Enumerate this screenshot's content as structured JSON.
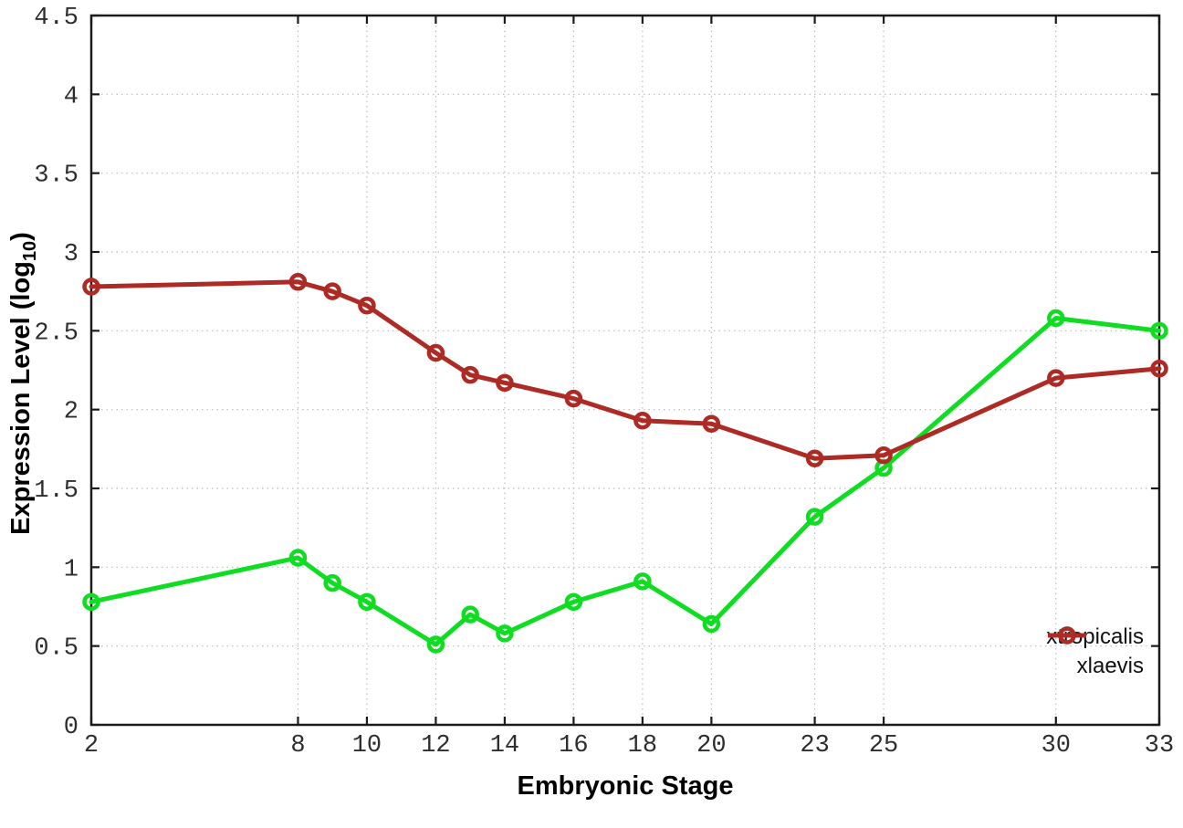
{
  "chart_data": {
    "type": "line",
    "title": "",
    "xlabel": "Embryonic Stage",
    "ylabel": "Expression Level (log10)",
    "ylabel_parts": {
      "main": "Expression Level (log",
      "sub": "10",
      "close": ")"
    },
    "xlim": [
      2,
      33
    ],
    "ylim": [
      0,
      4.5
    ],
    "grid": true,
    "legend_position": "inside-bottom-right",
    "x": [
      2,
      8,
      9,
      10,
      12,
      13,
      14,
      16,
      18,
      20,
      23,
      25,
      30,
      33
    ],
    "xticks": [
      2,
      8,
      10,
      12,
      14,
      16,
      18,
      20,
      23,
      25,
      30,
      33
    ],
    "xtick_labels": [
      "2",
      "8",
      "10",
      "12",
      "14",
      "16",
      "18",
      "20",
      "23",
      "25",
      "30",
      "33"
    ],
    "yticks": [
      0,
      0.5,
      1,
      1.5,
      2,
      2.5,
      3,
      3.5,
      4,
      4.5
    ],
    "ytick_labels": [
      "0",
      "0.5",
      "1",
      "1.5",
      "2",
      "2.5",
      "3",
      "3.5",
      "4",
      "4.5"
    ],
    "series": [
      {
        "name": "xtropicalis",
        "color": "#0edd22",
        "values": [
          0.78,
          1.06,
          0.9,
          0.78,
          0.51,
          0.7,
          0.58,
          0.78,
          0.91,
          0.64,
          1.32,
          1.63,
          2.58,
          2.5
        ]
      },
      {
        "name": "xlaevis",
        "color": "#ad2a25",
        "values": [
          2.78,
          2.81,
          2.75,
          2.66,
          2.36,
          2.22,
          2.17,
          2.07,
          1.93,
          1.91,
          1.69,
          1.71,
          2.2,
          2.26
        ]
      }
    ]
  },
  "colors": {
    "background": "#ffffff",
    "axis": "#1b1b1b",
    "grid": "#bcbcbc",
    "tick_label": "#2e2e2e",
    "xtropicalis_green": "#0edd22",
    "xlaevis_red": "#ad2a25"
  }
}
